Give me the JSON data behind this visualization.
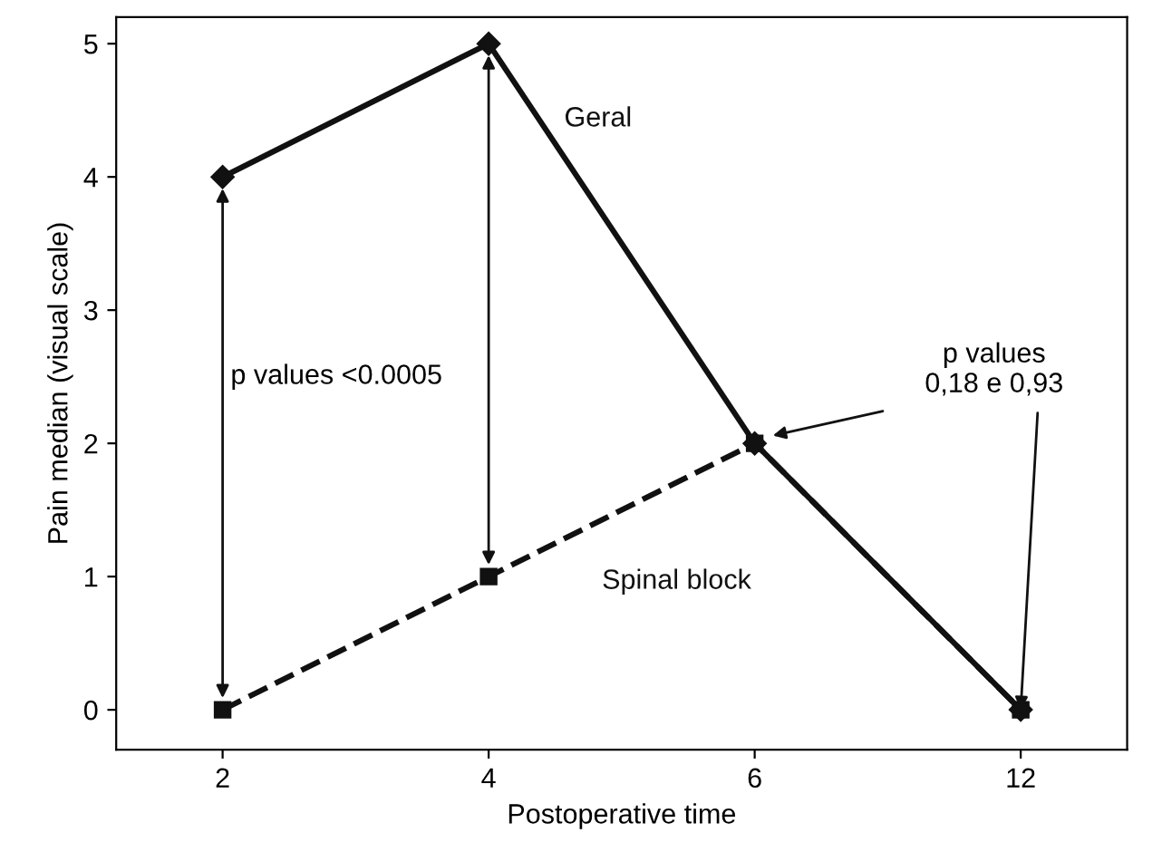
{
  "chart_data": {
    "type": "line",
    "xlabel": "Postoperative time",
    "ylabel": "Pain median (visual scale)",
    "categories": [
      "2",
      "4",
      "6",
      "12"
    ],
    "series": [
      {
        "name": "Geral",
        "color": "#111111",
        "values": [
          4,
          5,
          2,
          0
        ],
        "marker": "diamond",
        "line_style": "solid"
      },
      {
        "name": "Spinal block",
        "color": "#111111",
        "values": [
          0,
          1,
          2,
          0
        ],
        "marker": "square",
        "line_style": "dashed"
      }
    ],
    "ylim": [
      -0.3,
      5.2
    ],
    "yticks": [
      0,
      1,
      2,
      3,
      4,
      5
    ],
    "grid": false,
    "legend": false,
    "annotations": [
      "p values <0.0005",
      {
        "text": "p values\n0,18 e 0,93",
        "x": "12",
        "y": 0
      }
    ]
  }
}
